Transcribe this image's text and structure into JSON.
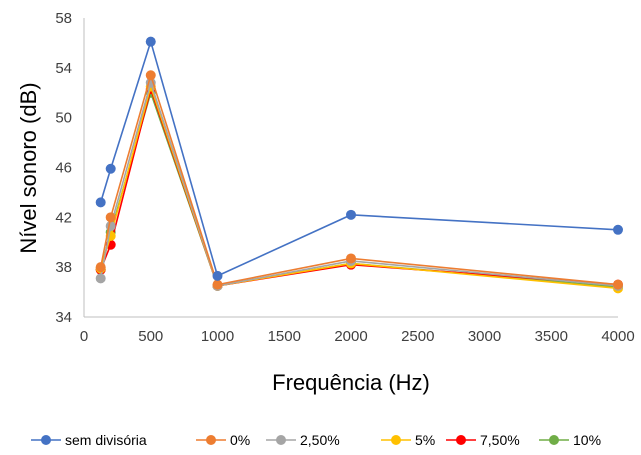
{
  "chart_data": {
    "type": "line",
    "title": "",
    "xlabel": "Frequência (Hz)",
    "ylabel": "Nível sonoro (dB)",
    "xlim": [
      0,
      4000
    ],
    "ylim": [
      34,
      58
    ],
    "xticks": [
      0,
      500,
      1000,
      1500,
      2000,
      2500,
      3000,
      3500,
      4000
    ],
    "yticks": [
      34,
      38,
      42,
      46,
      50,
      54,
      58
    ],
    "grid": false,
    "legend_position": "bottom",
    "x": [
      125,
      200,
      500,
      1000,
      2000,
      4000
    ],
    "series": [
      {
        "name": "sem divisória",
        "color": "#4472C4",
        "values": [
          43.2,
          45.9,
          56.1,
          37.3,
          42.2,
          41.0
        ]
      },
      {
        "name": "0%",
        "color": "#ED7D31",
        "values": [
          38.0,
          42.0,
          53.4,
          36.6,
          38.7,
          36.6
        ]
      },
      {
        "name": "2,50%",
        "color": "#A5A5A5",
        "values": [
          37.1,
          41.3,
          52.8,
          36.5,
          38.5,
          36.5
        ]
      },
      {
        "name": "5%",
        "color": "#FFC000",
        "values": [
          37.9,
          40.5,
          52.5,
          36.5,
          38.3,
          36.3
        ]
      },
      {
        "name": "7,50%",
        "color": "#FF0000",
        "values": [
          37.8,
          39.8,
          52.3,
          36.5,
          38.2,
          36.6
        ]
      },
      {
        "name": "10%",
        "color": "#70AD47",
        "values": [
          37.8,
          40.8,
          52.0,
          36.5,
          38.3,
          36.4
        ]
      }
    ]
  }
}
